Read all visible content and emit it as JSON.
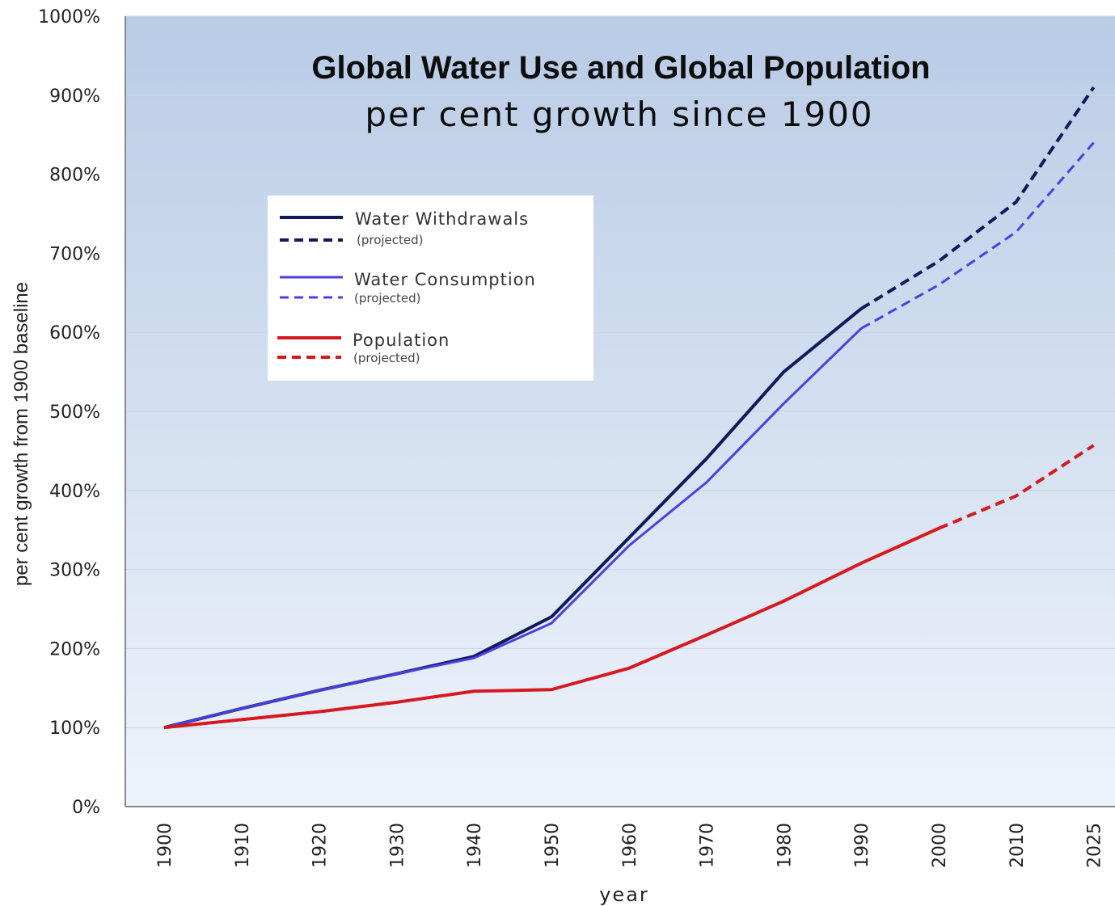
{
  "chart_data": {
    "type": "line",
    "title": "Global Water Use and Global Population",
    "subtitle": "per cent growth since 1900",
    "xlabel": "year",
    "ylabel": "per cent growth from 1900 baseline",
    "categories": [
      "1900",
      "1910",
      "1920",
      "1930",
      "1940",
      "1950",
      "1960",
      "1970",
      "1980",
      "1990",
      "2000",
      "2010",
      "2025"
    ],
    "ylim": [
      0,
      1000
    ],
    "yticks": [
      "0%",
      "100%",
      "200%",
      "300%",
      "400%",
      "500%",
      "600%",
      "700%",
      "800%",
      "900%",
      "1000%"
    ],
    "grid": true,
    "legend_position": "upper-left",
    "series": [
      {
        "name": "Water Withdrawals",
        "projected_label": "(projected)",
        "color": "#0d1a5c",
        "values": [
          100,
          124,
          147,
          168,
          190,
          240,
          340,
          440,
          550,
          630,
          690,
          765,
          910
        ],
        "projected_from_index": 10
      },
      {
        "name": "Water Consumption",
        "projected_label": "(projected)",
        "color": "#4b3fe0",
        "values": [
          100,
          124,
          147,
          168,
          188,
          232,
          330,
          410,
          510,
          605,
          660,
          727,
          840
        ],
        "projected_from_index": 10
      },
      {
        "name": "Population",
        "projected_label": "(projected)",
        "color": "#d7181f",
        "values": [
          100,
          110,
          120,
          132,
          146,
          148,
          175,
          217,
          260,
          308,
          352,
          393,
          457
        ],
        "projected_from_index": 11
      }
    ]
  }
}
